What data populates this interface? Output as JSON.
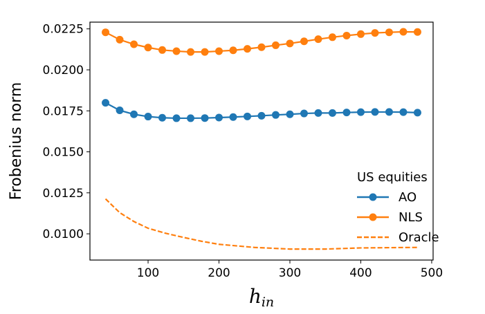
{
  "chart_data": {
    "type": "line",
    "title": "",
    "xlabel": "h_in",
    "xlabel_main": "h",
    "xlabel_sub": "in",
    "ylabel": "Frobenius norm",
    "xlim": [
      18,
      502
    ],
    "ylim": [
      0.0084,
      0.02291
    ],
    "xticks": [
      100,
      200,
      300,
      400,
      500
    ],
    "xtick_labels": [
      "100",
      "200",
      "300",
      "400",
      "500"
    ],
    "yticks": [
      0.01,
      0.0125,
      0.015,
      0.0175,
      0.02,
      0.0225
    ],
    "ytick_labels": [
      "0.0100",
      "0.0125",
      "0.0150",
      "0.0175",
      "0.0200",
      "0.0225"
    ],
    "grid": false,
    "legend": {
      "title": "US equities",
      "placement": "lower-right"
    },
    "series": [
      {
        "name": "AO",
        "color": "#1f77b4",
        "style": "solid-marker",
        "x": [
          40,
          60,
          80,
          100,
          120,
          140,
          160,
          180,
          200,
          220,
          240,
          260,
          280,
          300,
          320,
          340,
          360,
          380,
          400,
          420,
          440,
          460,
          480
        ],
        "y": [
          0.01799,
          0.01753,
          0.01729,
          0.01715,
          0.01708,
          0.01705,
          0.01705,
          0.01706,
          0.01709,
          0.01712,
          0.01716,
          0.0172,
          0.01725,
          0.01729,
          0.01734,
          0.01737,
          0.01737,
          0.0174,
          0.01742,
          0.01743,
          0.01743,
          0.01742,
          0.01739
        ]
      },
      {
        "name": "NLS",
        "color": "#ff7f0e",
        "style": "solid-marker",
        "x": [
          40,
          60,
          80,
          100,
          120,
          140,
          160,
          180,
          200,
          220,
          240,
          260,
          280,
          300,
          320,
          340,
          360,
          380,
          400,
          420,
          440,
          460,
          480
        ],
        "y": [
          0.02229,
          0.02184,
          0.02156,
          0.02136,
          0.02121,
          0.02114,
          0.02109,
          0.02109,
          0.02114,
          0.02119,
          0.02128,
          0.02138,
          0.0215,
          0.02161,
          0.02174,
          0.02187,
          0.02199,
          0.02209,
          0.02218,
          0.02225,
          0.02229,
          0.02232,
          0.02231
        ]
      },
      {
        "name": "Oracle",
        "color": "#ff7f0e",
        "style": "dashed",
        "x": [
          40,
          60,
          80,
          100,
          125,
          150,
          175,
          200,
          250,
          300,
          350,
          400,
          450,
          480
        ],
        "y": [
          0.01213,
          0.01129,
          0.01075,
          0.01034,
          0.01003,
          0.00978,
          0.00955,
          0.00936,
          0.00917,
          0.00907,
          0.00907,
          0.00914,
          0.00916,
          0.00917
        ]
      }
    ]
  }
}
